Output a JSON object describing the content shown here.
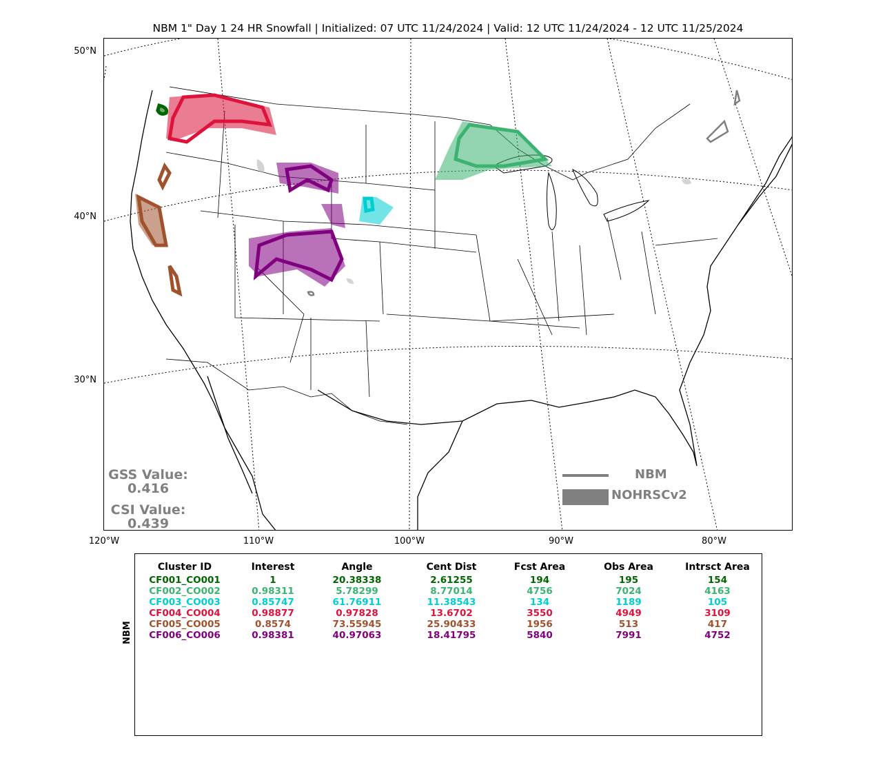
{
  "title": "NBM 1\" Day 1 24 HR Snowfall | Initialized: 07 UTC 11/24/2024 | Valid: 12 UTC 11/24/2024 - 12 UTC 11/25/2024",
  "lat_labels": [
    "50°N",
    "40°N",
    "30°N"
  ],
  "lon_labels": [
    "120°W",
    "110°W",
    "100°W",
    "90°W",
    "80°W"
  ],
  "stats": {
    "gss_label": "GSS Value:",
    "gss_value": "0.416",
    "csi_label": "CSI Value:",
    "csi_value": "0.439"
  },
  "legend": {
    "nbm": "NBM",
    "obs": "NOHRSCv2",
    "color": "#808080"
  },
  "table": {
    "side_label": "NBM",
    "headers": [
      "Cluster ID",
      "Interest",
      "Angle",
      "Cent Dist",
      "Fcst Area",
      "Obs Area",
      "Intrsct Area"
    ],
    "rows": [
      {
        "color": "#006400",
        "cells": [
          "CF001_CO001",
          "1",
          "20.38338",
          "2.61255",
          "194",
          "195",
          "154"
        ]
      },
      {
        "color": "#3cb371",
        "cells": [
          "CF002_CO002",
          "0.98311",
          "5.78299",
          "8.77014",
          "4756",
          "7024",
          "4163"
        ]
      },
      {
        "color": "#00ced1",
        "cells": [
          "CF003_CO003",
          "0.85747",
          "61.76911",
          "11.38543",
          "134",
          "1189",
          "105"
        ]
      },
      {
        "color": "#dc143c",
        "cells": [
          "CF004_CO004",
          "0.98877",
          "0.97828",
          "13.6702",
          "3550",
          "4949",
          "3109"
        ]
      },
      {
        "color": "#a0522d",
        "cells": [
          "CF005_CO005",
          "0.8574",
          "73.55945",
          "25.90433",
          "1956",
          "513",
          "417"
        ]
      },
      {
        "color": "#800080",
        "cells": [
          "CF006_CO006",
          "0.98381",
          "40.97063",
          "18.41795",
          "5840",
          "7991",
          "4752"
        ]
      }
    ]
  }
}
